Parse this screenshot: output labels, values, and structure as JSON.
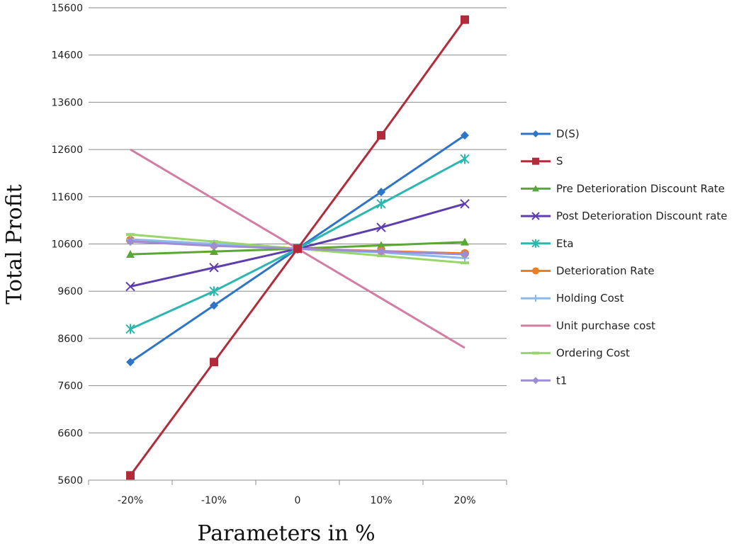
{
  "chart_data": {
    "type": "line",
    "title": "",
    "xlabel": "Parameters in %",
    "ylabel": "Total Profit",
    "categories": [
      "-20%",
      "-10%",
      "0",
      "10%",
      "20%"
    ],
    "ylim": [
      5600,
      15600
    ],
    "yticks": [
      "5600",
      "6600",
      "7600",
      "8600",
      "9600",
      "10600",
      "11600",
      "12600",
      "13600",
      "14600",
      "15600"
    ],
    "grid": "horizontal",
    "legend": "right",
    "series": [
      {
        "name": "D(S)",
        "color": "#2e75c8",
        "marker": "diamond",
        "values": [
          8100,
          9300,
          10500,
          11700,
          12900
        ]
      },
      {
        "name": "S",
        "color": "#b22b3a",
        "marker": "square",
        "values": [
          5700,
          8100,
          10500,
          12900,
          15350
        ]
      },
      {
        "name": "Pre Deterioration Discount Rate",
        "color": "#5aa832",
        "marker": "triangle",
        "values": [
          10380,
          10440,
          10500,
          10570,
          10640
        ]
      },
      {
        "name": "Post Deterioration Discount rate",
        "color": "#5e3dad",
        "marker": "x",
        "values": [
          9700,
          10100,
          10500,
          10950,
          11450
        ]
      },
      {
        "name": "Eta",
        "color": "#2ab7b0",
        "marker": "star",
        "values": [
          8800,
          9600,
          10500,
          11450,
          12400
        ]
      },
      {
        "name": "Deterioration Rate",
        "color": "#ee7d22",
        "marker": "circle",
        "values": [
          10680,
          10580,
          10500,
          10450,
          10400
        ]
      },
      {
        "name": "Holding Cost",
        "color": "#8ab9ea",
        "marker": "plus",
        "values": [
          10700,
          10600,
          10500,
          10420,
          10300
        ]
      },
      {
        "name": "Unit purchase cost",
        "color": "#d27da3",
        "marker": "none",
        "values": [
          12600,
          11550,
          10500,
          9450,
          8400
        ]
      },
      {
        "name": "Ordering Cost",
        "color": "#98d66a",
        "marker": "dash",
        "values": [
          10800,
          10650,
          10500,
          10350,
          10200
        ]
      },
      {
        "name": "t1",
        "color": "#9e8cd6",
        "marker": "diamond",
        "values": [
          10650,
          10560,
          10500,
          10440,
          10380
        ]
      }
    ]
  }
}
